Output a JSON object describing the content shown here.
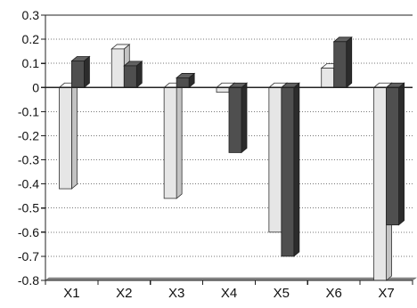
{
  "chart_data": {
    "type": "bar",
    "title": "",
    "xlabel": "",
    "ylabel": "",
    "categories": [
      "X1",
      "X2",
      "X3",
      "X4",
      "X5",
      "X6",
      "X7"
    ],
    "series": [
      {
        "values": [
          -0.42,
          0.16,
          -0.46,
          -0.02,
          -0.6,
          0.08,
          -0.8
        ],
        "color": "#e6e6e6",
        "stroke": "#333333"
      },
      {
        "values": [
          0.11,
          0.09,
          0.04,
          -0.27,
          -0.7,
          0.19,
          -0.57
        ],
        "color": "#4f4f4f",
        "stroke": "#1e1e1e"
      }
    ],
    "ylim": [
      -0.8,
      0.3
    ],
    "yticks": [
      0.3,
      0.2,
      0.1,
      0,
      -0.1,
      -0.2,
      -0.3,
      -0.4,
      -0.5,
      -0.6,
      -0.7,
      -0.8
    ],
    "ytick_labels": [
      "0.3",
      "0.2",
      "0.1",
      "0",
      "-0.1",
      "-0.2",
      "-0.3",
      "-0.4",
      "-0.5",
      "-0.6",
      "-0.7",
      "-0.8"
    ],
    "grid": true,
    "legend": "none",
    "style": "3d-bars"
  }
}
